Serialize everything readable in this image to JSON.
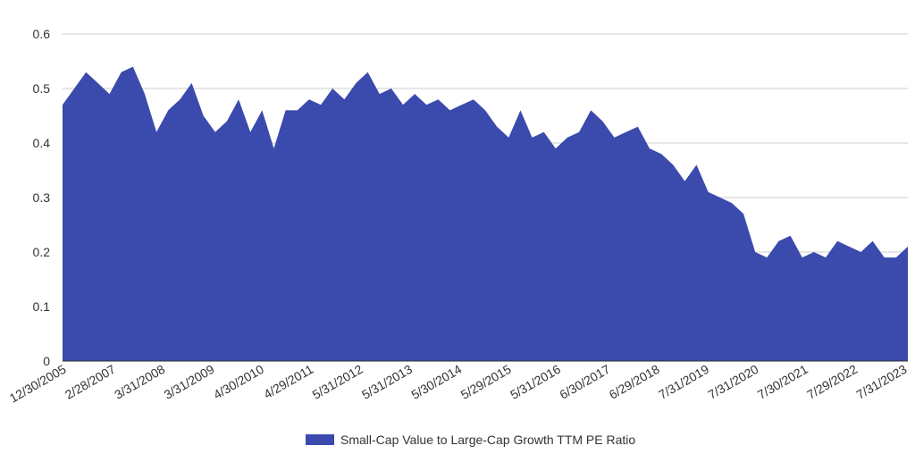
{
  "chart_data": {
    "type": "area",
    "title": "",
    "xlabel": "",
    "ylabel": "",
    "ylim": [
      0,
      0.6
    ],
    "yticks": [
      "0",
      "0.1",
      "0.2",
      "0.3",
      "0.4",
      "0.5",
      "0.6"
    ],
    "xticks": [
      "12/30/2005",
      "2/28/2007",
      "3/31/2008",
      "3/31/2009",
      "4/30/2010",
      "4/29/2011",
      "5/31/2012",
      "5/31/2013",
      "5/30/2014",
      "5/29/2015",
      "5/31/2016",
      "6/30/2017",
      "6/29/2018",
      "7/31/2019",
      "7/31/2020",
      "7/30/2021",
      "7/29/2022",
      "7/31/2023"
    ],
    "grid": true,
    "legend_position": "bottom",
    "color": "#3b4aad",
    "series": [
      {
        "name": "Small-Cap Value to Large-Cap Growth TTM PE Ratio",
        "x": [
          "2005-12",
          "2006-03",
          "2006-06",
          "2006-09",
          "2006-12",
          "2007-03",
          "2007-06",
          "2007-09",
          "2007-12",
          "2008-03",
          "2008-06",
          "2008-09",
          "2008-12",
          "2009-03",
          "2009-06",
          "2009-09",
          "2009-12",
          "2010-03",
          "2010-06",
          "2010-09",
          "2010-12",
          "2011-03",
          "2011-06",
          "2011-09",
          "2011-12",
          "2012-03",
          "2012-06",
          "2012-09",
          "2012-12",
          "2013-03",
          "2013-06",
          "2013-09",
          "2013-12",
          "2014-03",
          "2014-06",
          "2014-09",
          "2014-12",
          "2015-03",
          "2015-06",
          "2015-09",
          "2015-12",
          "2016-03",
          "2016-06",
          "2016-09",
          "2016-12",
          "2017-03",
          "2017-06",
          "2017-09",
          "2017-12",
          "2018-03",
          "2018-06",
          "2018-09",
          "2018-12",
          "2019-03",
          "2019-06",
          "2019-09",
          "2019-12",
          "2020-03",
          "2020-06",
          "2020-09",
          "2020-12",
          "2021-03",
          "2021-06",
          "2021-09",
          "2021-12",
          "2022-03",
          "2022-06",
          "2022-09",
          "2022-12",
          "2023-03",
          "2023-06",
          "2023-09",
          "2023-12"
        ],
        "values": [
          0.47,
          0.5,
          0.53,
          0.51,
          0.49,
          0.53,
          0.54,
          0.49,
          0.42,
          0.46,
          0.48,
          0.51,
          0.45,
          0.42,
          0.44,
          0.48,
          0.42,
          0.46,
          0.39,
          0.46,
          0.46,
          0.48,
          0.47,
          0.5,
          0.48,
          0.51,
          0.53,
          0.49,
          0.5,
          0.47,
          0.49,
          0.47,
          0.48,
          0.46,
          0.47,
          0.48,
          0.46,
          0.43,
          0.41,
          0.46,
          0.41,
          0.42,
          0.39,
          0.41,
          0.42,
          0.46,
          0.44,
          0.41,
          0.42,
          0.43,
          0.39,
          0.38,
          0.36,
          0.33,
          0.36,
          0.31,
          0.3,
          0.29,
          0.27,
          0.2,
          0.19,
          0.22,
          0.23,
          0.19,
          0.2,
          0.19,
          0.22,
          0.21,
          0.2,
          0.22,
          0.19,
          0.19,
          0.21
        ]
      }
    ]
  }
}
